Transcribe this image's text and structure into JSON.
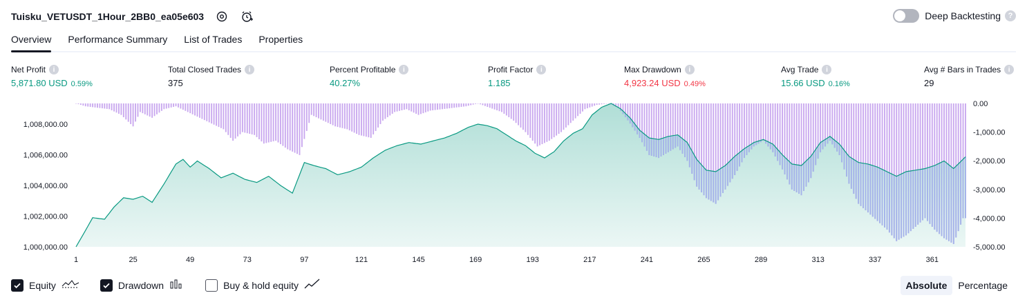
{
  "header": {
    "title": "Tuisku_VETUSDT_1Hour_2BB0_ea05e603",
    "deep_backtesting_label": "Deep Backtesting",
    "deep_backtesting_enabled": false
  },
  "tabs": [
    {
      "label": "Overview",
      "active": true
    },
    {
      "label": "Performance Summary",
      "active": false
    },
    {
      "label": "List of Trades",
      "active": false
    },
    {
      "label": "Properties",
      "active": false
    }
  ],
  "stats": [
    {
      "label": "Net Profit",
      "value": "5,871.80 USD",
      "pct": "0.59%",
      "tone": "pos"
    },
    {
      "label": "Total Closed Trades",
      "value": "375",
      "pct": "",
      "tone": "neu"
    },
    {
      "label": "Percent Profitable",
      "value": "40.27%",
      "pct": "",
      "tone": "pos"
    },
    {
      "label": "Profit Factor",
      "value": "1.185",
      "pct": "",
      "tone": "pos"
    },
    {
      "label": "Max Drawdown",
      "value": "4,923.24 USD",
      "pct": "0.49%",
      "tone": "neg"
    },
    {
      "label": "Avg Trade",
      "value": "15.66 USD",
      "pct": "0.16%",
      "tone": "pos"
    },
    {
      "label": "Avg # Bars in Trades",
      "value": "29",
      "pct": "",
      "tone": "neu"
    }
  ],
  "chart_data": {
    "type": "area",
    "x_ticks": [
      "1",
      "25",
      "49",
      "73",
      "97",
      "121",
      "145",
      "169",
      "193",
      "217",
      "241",
      "265",
      "289",
      "313",
      "337",
      "361"
    ],
    "y_left_ticks": [
      "1,000,000.00",
      "1,002,000.00",
      "1,004,000.00",
      "1,006,000.00",
      "1,008,000.00"
    ],
    "y_right_ticks": [
      "0.00",
      "-1,000.00",
      "-2,000.00",
      "-3,000.00",
      "-4,000.00",
      "-5,000.00"
    ],
    "equity": {
      "name": "Equity",
      "color": "#089981",
      "ylim": [
        1000000,
        1009350
      ],
      "points": [
        [
          1,
          1000000
        ],
        [
          4,
          1000800
        ],
        [
          8,
          1001900
        ],
        [
          13,
          1001800
        ],
        [
          17,
          1002600
        ],
        [
          21,
          1003200
        ],
        [
          25,
          1003100
        ],
        [
          29,
          1003300
        ],
        [
          33,
          1002900
        ],
        [
          38,
          1004100
        ],
        [
          43,
          1005400
        ],
        [
          46,
          1005700
        ],
        [
          49,
          1005200
        ],
        [
          52,
          1005600
        ],
        [
          57,
          1005100
        ],
        [
          62,
          1004500
        ],
        [
          67,
          1004800
        ],
        [
          72,
          1004400
        ],
        [
          77,
          1004200
        ],
        [
          82,
          1004600
        ],
        [
          87,
          1004000
        ],
        [
          92,
          1003500
        ],
        [
          97,
          1005500
        ],
        [
          101,
          1005300
        ],
        [
          106,
          1005100
        ],
        [
          111,
          1004700
        ],
        [
          116,
          1004900
        ],
        [
          121,
          1005200
        ],
        [
          126,
          1005800
        ],
        [
          131,
          1006300
        ],
        [
          136,
          1006600
        ],
        [
          141,
          1006800
        ],
        [
          146,
          1006700
        ],
        [
          151,
          1006900
        ],
        [
          156,
          1007100
        ],
        [
          161,
          1007400
        ],
        [
          166,
          1007800
        ],
        [
          170,
          1008000
        ],
        [
          174,
          1007900
        ],
        [
          178,
          1007700
        ],
        [
          182,
          1007300
        ],
        [
          186,
          1006900
        ],
        [
          190,
          1006600
        ],
        [
          194,
          1006100
        ],
        [
          198,
          1005800
        ],
        [
          202,
          1006200
        ],
        [
          206,
          1006900
        ],
        [
          210,
          1007400
        ],
        [
          214,
          1007700
        ],
        [
          218,
          1008600
        ],
        [
          222,
          1009100
        ],
        [
          226,
          1009350
        ],
        [
          230,
          1009000
        ],
        [
          234,
          1008400
        ],
        [
          238,
          1007600
        ],
        [
          242,
          1007100
        ],
        [
          246,
          1007000
        ],
        [
          250,
          1007200
        ],
        [
          254,
          1007300
        ],
        [
          258,
          1006800
        ],
        [
          262,
          1005700
        ],
        [
          266,
          1005000
        ],
        [
          270,
          1004900
        ],
        [
          274,
          1005300
        ],
        [
          278,
          1005900
        ],
        [
          282,
          1006400
        ],
        [
          286,
          1006800
        ],
        [
          290,
          1007000
        ],
        [
          294,
          1006700
        ],
        [
          298,
          1006000
        ],
        [
          302,
          1005400
        ],
        [
          306,
          1005300
        ],
        [
          310,
          1005900
        ],
        [
          314,
          1006800
        ],
        [
          318,
          1007200
        ],
        [
          322,
          1006700
        ],
        [
          326,
          1005900
        ],
        [
          330,
          1005500
        ],
        [
          334,
          1005400
        ],
        [
          338,
          1005200
        ],
        [
          342,
          1004900
        ],
        [
          346,
          1004600
        ],
        [
          350,
          1004900
        ],
        [
          354,
          1005000
        ],
        [
          358,
          1005100
        ],
        [
          362,
          1005300
        ],
        [
          366,
          1005600
        ],
        [
          370,
          1005100
        ],
        [
          375,
          1005871
        ]
      ]
    },
    "drawdown": {
      "name": "Drawdown",
      "color": "#c9a8ef",
      "overlap_color": "#a6b4ea",
      "ylim": [
        -5000,
        0
      ],
      "points": [
        [
          1,
          0
        ],
        [
          5,
          -100
        ],
        [
          10,
          -150
        ],
        [
          15,
          -200
        ],
        [
          20,
          -400
        ],
        [
          25,
          -800
        ],
        [
          28,
          -300
        ],
        [
          33,
          -500
        ],
        [
          38,
          -200
        ],
        [
          43,
          -100
        ],
        [
          48,
          -300
        ],
        [
          53,
          -500
        ],
        [
          58,
          -700
        ],
        [
          63,
          -900
        ],
        [
          67,
          -1300
        ],
        [
          71,
          -1000
        ],
        [
          76,
          -1100
        ],
        [
          80,
          -1400
        ],
        [
          85,
          -1300
        ],
        [
          90,
          -1600
        ],
        [
          95,
          -1800
        ],
        [
          100,
          -400
        ],
        [
          105,
          -600
        ],
        [
          110,
          -800
        ],
        [
          115,
          -900
        ],
        [
          120,
          -1100
        ],
        [
          125,
          -1200
        ],
        [
          130,
          -600
        ],
        [
          135,
          -300
        ],
        [
          140,
          -200
        ],
        [
          145,
          -400
        ],
        [
          150,
          -250
        ],
        [
          155,
          -200
        ],
        [
          160,
          -150
        ],
        [
          165,
          -100
        ],
        [
          170,
          0
        ],
        [
          175,
          -150
        ],
        [
          180,
          -300
        ],
        [
          185,
          -600
        ],
        [
          190,
          -1000
        ],
        [
          195,
          -1500
        ],
        [
          200,
          -1300
        ],
        [
          205,
          -1000
        ],
        [
          210,
          -600
        ],
        [
          215,
          -200
        ],
        [
          220,
          -50
        ],
        [
          225,
          0
        ],
        [
          229,
          -150
        ],
        [
          234,
          -700
        ],
        [
          238,
          -1200
        ],
        [
          242,
          -1800
        ],
        [
          246,
          -1900
        ],
        [
          250,
          -1700
        ],
        [
          254,
          -1500
        ],
        [
          258,
          -2000
        ],
        [
          262,
          -2900
        ],
        [
          266,
          -3300
        ],
        [
          270,
          -3500
        ],
        [
          274,
          -3000
        ],
        [
          278,
          -2500
        ],
        [
          282,
          -1900
        ],
        [
          286,
          -1500
        ],
        [
          290,
          -1300
        ],
        [
          294,
          -1700
        ],
        [
          298,
          -2300
        ],
        [
          302,
          -3000
        ],
        [
          306,
          -3200
        ],
        [
          310,
          -2600
        ],
        [
          314,
          -1700
        ],
        [
          318,
          -1300
        ],
        [
          322,
          -1800
        ],
        [
          326,
          -2800
        ],
        [
          330,
          -3500
        ],
        [
          334,
          -3800
        ],
        [
          338,
          -4100
        ],
        [
          342,
          -4400
        ],
        [
          346,
          -4800
        ],
        [
          350,
          -4600
        ],
        [
          354,
          -4300
        ],
        [
          358,
          -4000
        ],
        [
          362,
          -4400
        ],
        [
          366,
          -4700
        ],
        [
          370,
          -4900
        ],
        [
          374,
          -4000
        ]
      ]
    },
    "buy_hold": {
      "name": "Buy & hold equity",
      "shown": false
    }
  },
  "legend": [
    {
      "label": "Equity",
      "checked": true,
      "icon": "equity-line-icon"
    },
    {
      "label": "Drawdown",
      "checked": true,
      "icon": "drawdown-bars-icon"
    },
    {
      "label": "Buy & hold equity",
      "checked": false,
      "icon": "buy-hold-line-icon"
    }
  ],
  "mode": {
    "absolute": "Absolute",
    "percentage": "Percentage",
    "selected": "absolute"
  }
}
